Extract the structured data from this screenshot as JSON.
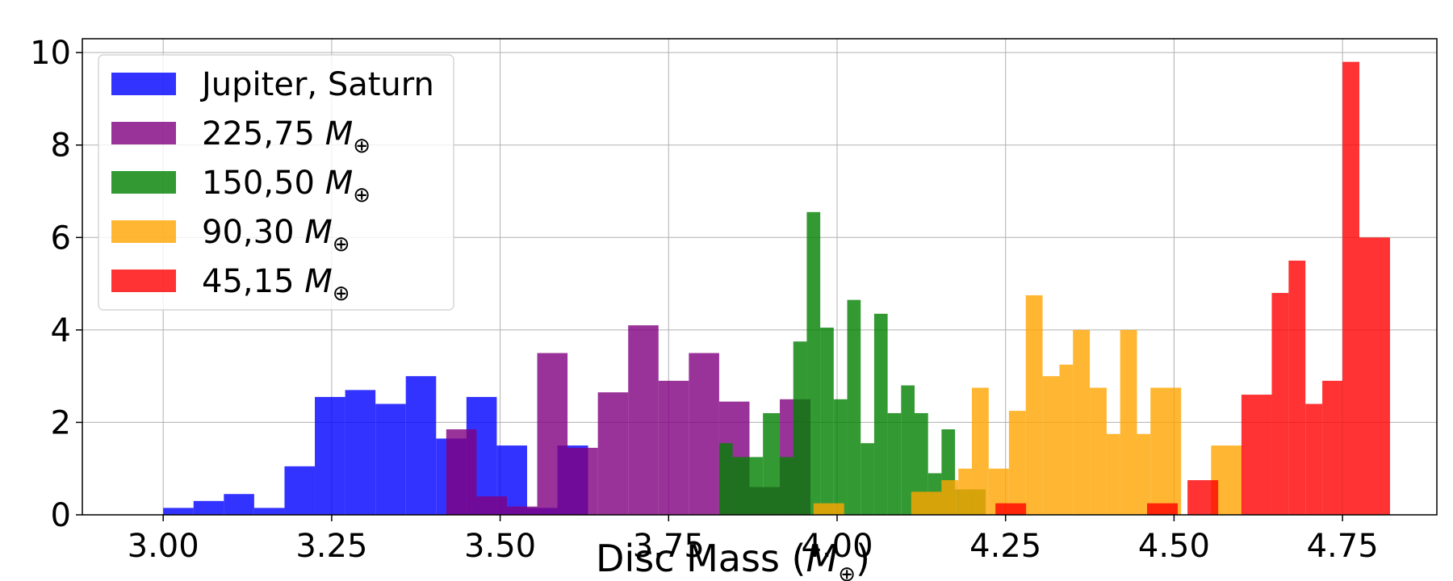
{
  "chart_data": {
    "type": "bar",
    "histogram": true,
    "bin_width": 0.0455,
    "xlabel": "Disc Mass (",
    "xlabel_symbol": "M",
    "xlabel_subscript": "⊕",
    "xlabel_close": ")",
    "xlim": [
      2.88,
      4.89
    ],
    "ylim": [
      0,
      10.3
    ],
    "xticks": [
      "3.00",
      "3.25",
      "3.50",
      "3.75",
      "4.00",
      "4.25",
      "4.50",
      "4.75"
    ],
    "yticks": [
      "0",
      "2",
      "4",
      "6",
      "8",
      "10"
    ],
    "grid": true,
    "legend_position": "top-left",
    "colors": {
      "blue": "#0000ff",
      "purple": "#800080",
      "green": "#008000",
      "orange": "#ffa500",
      "red": "#ff0000",
      "opacity": 0.8
    },
    "series": [
      {
        "name": "Jupiter, Saturn",
        "name_symbol": "",
        "color": "#0000ff",
        "bins": [
          [
            3.0,
            0.15
          ],
          [
            3.045,
            0.3
          ],
          [
            3.09,
            0.45
          ],
          [
            3.135,
            0.15
          ],
          [
            3.18,
            1.05
          ],
          [
            3.225,
            2.55
          ],
          [
            3.27,
            2.7
          ],
          [
            3.315,
            2.4
          ],
          [
            3.36,
            3.0
          ],
          [
            3.405,
            1.65
          ],
          [
            3.45,
            2.55
          ],
          [
            3.495,
            1.5
          ],
          [
            3.54,
            0.15
          ],
          [
            3.585,
            1.5
          ]
        ]
      },
      {
        "name": "225,75 ",
        "name_symbol": "M",
        "color": "#800080",
        "bins": [
          [
            3.42,
            1.85
          ],
          [
            3.465,
            0.4
          ],
          [
            3.51,
            0.18
          ],
          [
            3.555,
            3.5
          ],
          [
            3.6,
            1.45
          ],
          [
            3.645,
            2.65
          ],
          [
            3.69,
            4.1
          ],
          [
            3.735,
            2.9
          ],
          [
            3.78,
            3.5
          ],
          [
            3.825,
            2.45
          ],
          [
            3.87,
            0.6
          ],
          [
            3.915,
            2.5
          ]
        ]
      },
      {
        "name": "150,50 ",
        "name_symbol": "M",
        "color": "#008000",
        "bins": [
          [
            3.825,
            1.55
          ],
          [
            3.845,
            1.25
          ],
          [
            3.89,
            2.2
          ],
          [
            3.915,
            1.25
          ],
          [
            3.935,
            3.75
          ],
          [
            3.955,
            6.55
          ],
          [
            3.975,
            4.05
          ],
          [
            3.995,
            2.5
          ],
          [
            4.015,
            4.65
          ],
          [
            4.035,
            1.55
          ],
          [
            4.055,
            4.35
          ],
          [
            4.075,
            2.2
          ],
          [
            4.095,
            2.8
          ],
          [
            4.115,
            2.2
          ],
          [
            4.135,
            0.9
          ],
          [
            4.155,
            1.85
          ],
          [
            4.175,
            0.55
          ]
        ]
      },
      {
        "name": "90,30 ",
        "name_symbol": "M",
        "color": "#ffa500",
        "bins": [
          [
            3.965,
            0.25
          ],
          [
            4.11,
            0.5
          ],
          [
            4.155,
            0.75
          ],
          [
            4.18,
            1.0
          ],
          [
            4.2,
            2.75
          ],
          [
            4.225,
            1.0
          ],
          [
            4.255,
            2.25
          ],
          [
            4.28,
            4.75
          ],
          [
            4.305,
            3.0
          ],
          [
            4.33,
            3.25
          ],
          [
            4.35,
            4.0
          ],
          [
            4.375,
            2.75
          ],
          [
            4.4,
            1.75
          ],
          [
            4.42,
            4.0
          ],
          [
            4.445,
            1.75
          ],
          [
            4.465,
            2.75
          ],
          [
            4.555,
            1.5
          ]
        ]
      },
      {
        "name": "45,15 ",
        "name_symbol": "M",
        "color": "#ff0000",
        "bins": [
          [
            4.235,
            0.25
          ],
          [
            4.46,
            0.25
          ],
          [
            4.52,
            0.75
          ],
          [
            4.6,
            2.6
          ],
          [
            4.645,
            4.8
          ],
          [
            4.67,
            5.5
          ],
          [
            4.695,
            2.4
          ],
          [
            4.72,
            2.9
          ],
          [
            4.75,
            9.8
          ],
          [
            4.775,
            6.0
          ]
        ]
      }
    ]
  }
}
